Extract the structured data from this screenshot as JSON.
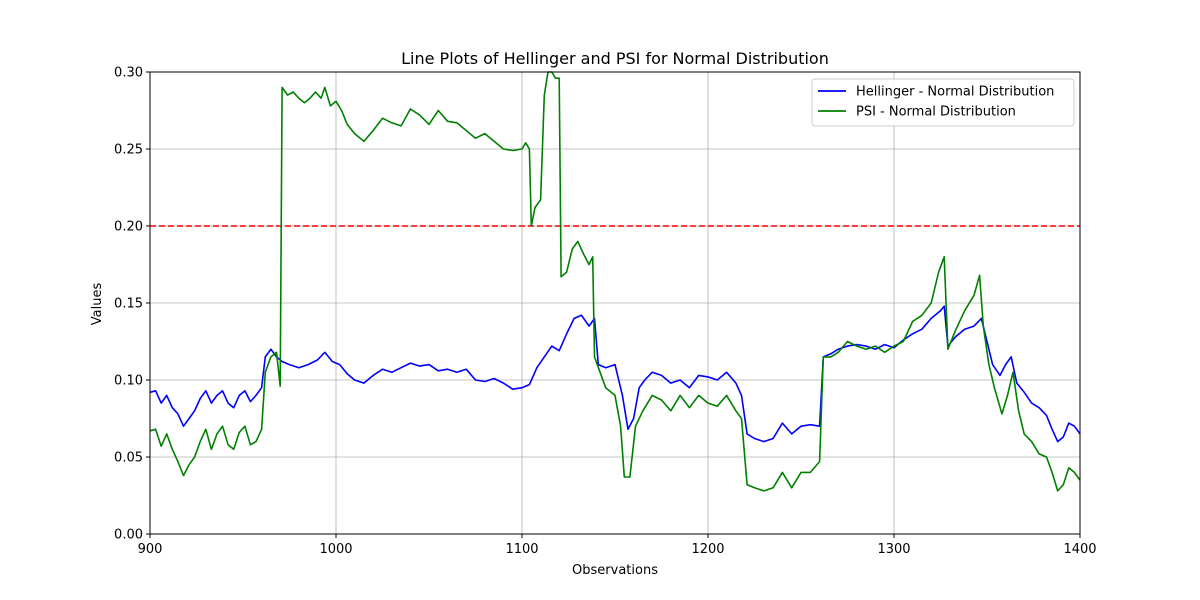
{
  "chart_data": {
    "type": "line",
    "title": "Line Plots of Hellinger and PSI for Normal Distribution",
    "xlabel": "Observations",
    "ylabel": "Values",
    "xlim": [
      900,
      1400
    ],
    "ylim": [
      0.0,
      0.3
    ],
    "x_ticks": [
      900,
      1000,
      1100,
      1200,
      1300,
      1400
    ],
    "x_tick_labels": [
      "900",
      "1000",
      "1100",
      "1200",
      "1300",
      "1400"
    ],
    "y_ticks": [
      0.0,
      0.05,
      0.1,
      0.15,
      0.2,
      0.25,
      0.3
    ],
    "y_tick_labels": [
      "0.00",
      "0.05",
      "0.10",
      "0.15",
      "0.20",
      "0.25",
      "0.30"
    ],
    "grid": true,
    "legend_position": "top-right",
    "threshold": {
      "value": 0.2,
      "color": "#ff0000",
      "style": "dashed"
    },
    "series": [
      {
        "name": "Hellinger - Normal Distribution",
        "color": "#0000ff",
        "points": [
          [
            900,
            0.092
          ],
          [
            903,
            0.093
          ],
          [
            906,
            0.085
          ],
          [
            909,
            0.09
          ],
          [
            912,
            0.082
          ],
          [
            915,
            0.078
          ],
          [
            918,
            0.07
          ],
          [
            921,
            0.075
          ],
          [
            924,
            0.08
          ],
          [
            927,
            0.088
          ],
          [
            930,
            0.093
          ],
          [
            933,
            0.085
          ],
          [
            936,
            0.09
          ],
          [
            939,
            0.093
          ],
          [
            942,
            0.085
          ],
          [
            945,
            0.082
          ],
          [
            948,
            0.09
          ],
          [
            951,
            0.093
          ],
          [
            954,
            0.086
          ],
          [
            957,
            0.09
          ],
          [
            960,
            0.095
          ],
          [
            962,
            0.115
          ],
          [
            965,
            0.12
          ],
          [
            968,
            0.115
          ],
          [
            971,
            0.112
          ],
          [
            975,
            0.11
          ],
          [
            980,
            0.108
          ],
          [
            985,
            0.11
          ],
          [
            990,
            0.113
          ],
          [
            994,
            0.118
          ],
          [
            998,
            0.112
          ],
          [
            1002,
            0.11
          ],
          [
            1006,
            0.104
          ],
          [
            1010,
            0.1
          ],
          [
            1015,
            0.098
          ],
          [
            1020,
            0.103
          ],
          [
            1025,
            0.107
          ],
          [
            1030,
            0.105
          ],
          [
            1035,
            0.108
          ],
          [
            1040,
            0.111
          ],
          [
            1045,
            0.109
          ],
          [
            1050,
            0.11
          ],
          [
            1055,
            0.106
          ],
          [
            1060,
            0.107
          ],
          [
            1065,
            0.105
          ],
          [
            1070,
            0.107
          ],
          [
            1075,
            0.1
          ],
          [
            1080,
            0.099
          ],
          [
            1085,
            0.101
          ],
          [
            1090,
            0.098
          ],
          [
            1095,
            0.094
          ],
          [
            1100,
            0.095
          ],
          [
            1104,
            0.097
          ],
          [
            1108,
            0.108
          ],
          [
            1112,
            0.115
          ],
          [
            1116,
            0.122
          ],
          [
            1120,
            0.119
          ],
          [
            1124,
            0.13
          ],
          [
            1128,
            0.14
          ],
          [
            1132,
            0.142
          ],
          [
            1136,
            0.135
          ],
          [
            1139,
            0.14
          ],
          [
            1141,
            0.11
          ],
          [
            1145,
            0.108
          ],
          [
            1150,
            0.11
          ],
          [
            1154,
            0.09
          ],
          [
            1157,
            0.068
          ],
          [
            1160,
            0.075
          ],
          [
            1163,
            0.095
          ],
          [
            1166,
            0.1
          ],
          [
            1170,
            0.105
          ],
          [
            1175,
            0.103
          ],
          [
            1180,
            0.098
          ],
          [
            1185,
            0.1
          ],
          [
            1190,
            0.095
          ],
          [
            1195,
            0.103
          ],
          [
            1200,
            0.102
          ],
          [
            1205,
            0.1
          ],
          [
            1210,
            0.105
          ],
          [
            1215,
            0.098
          ],
          [
            1218,
            0.09
          ],
          [
            1221,
            0.065
          ],
          [
            1225,
            0.062
          ],
          [
            1230,
            0.06
          ],
          [
            1235,
            0.062
          ],
          [
            1240,
            0.072
          ],
          [
            1245,
            0.065
          ],
          [
            1250,
            0.07
          ],
          [
            1255,
            0.071
          ],
          [
            1260,
            0.07
          ],
          [
            1262,
            0.115
          ],
          [
            1266,
            0.117
          ],
          [
            1270,
            0.12
          ],
          [
            1275,
            0.122
          ],
          [
            1280,
            0.123
          ],
          [
            1285,
            0.122
          ],
          [
            1290,
            0.12
          ],
          [
            1295,
            0.123
          ],
          [
            1300,
            0.121
          ],
          [
            1305,
            0.126
          ],
          [
            1310,
            0.13
          ],
          [
            1315,
            0.133
          ],
          [
            1320,
            0.14
          ],
          [
            1325,
            0.145
          ],
          [
            1327,
            0.148
          ],
          [
            1329,
            0.122
          ],
          [
            1333,
            0.128
          ],
          [
            1338,
            0.133
          ],
          [
            1343,
            0.135
          ],
          [
            1347,
            0.14
          ],
          [
            1350,
            0.125
          ],
          [
            1353,
            0.11
          ],
          [
            1357,
            0.103
          ],
          [
            1360,
            0.11
          ],
          [
            1363,
            0.115
          ],
          [
            1366,
            0.098
          ],
          [
            1370,
            0.092
          ],
          [
            1374,
            0.085
          ],
          [
            1378,
            0.082
          ],
          [
            1382,
            0.077
          ],
          [
            1385,
            0.068
          ],
          [
            1388,
            0.06
          ],
          [
            1391,
            0.063
          ],
          [
            1394,
            0.072
          ],
          [
            1397,
            0.07
          ],
          [
            1400,
            0.065
          ]
        ]
      },
      {
        "name": "PSI - Normal Distribution",
        "color": "#008000",
        "points": [
          [
            900,
            0.067
          ],
          [
            903,
            0.068
          ],
          [
            906,
            0.057
          ],
          [
            909,
            0.065
          ],
          [
            912,
            0.055
          ],
          [
            915,
            0.047
          ],
          [
            918,
            0.038
          ],
          [
            921,
            0.045
          ],
          [
            924,
            0.05
          ],
          [
            927,
            0.06
          ],
          [
            930,
            0.068
          ],
          [
            933,
            0.055
          ],
          [
            936,
            0.065
          ],
          [
            939,
            0.07
          ],
          [
            942,
            0.058
          ],
          [
            945,
            0.055
          ],
          [
            948,
            0.066
          ],
          [
            951,
            0.07
          ],
          [
            954,
            0.058
          ],
          [
            957,
            0.06
          ],
          [
            960,
            0.068
          ],
          [
            962,
            0.105
          ],
          [
            965,
            0.115
          ],
          [
            968,
            0.118
          ],
          [
            970,
            0.096
          ],
          [
            971,
            0.29
          ],
          [
            974,
            0.285
          ],
          [
            977,
            0.287
          ],
          [
            980,
            0.283
          ],
          [
            983,
            0.28
          ],
          [
            986,
            0.283
          ],
          [
            989,
            0.287
          ],
          [
            992,
            0.283
          ],
          [
            994,
            0.29
          ],
          [
            997,
            0.278
          ],
          [
            1000,
            0.281
          ],
          [
            1003,
            0.275
          ],
          [
            1006,
            0.266
          ],
          [
            1010,
            0.26
          ],
          [
            1015,
            0.255
          ],
          [
            1020,
            0.262
          ],
          [
            1025,
            0.27
          ],
          [
            1030,
            0.267
          ],
          [
            1035,
            0.265
          ],
          [
            1040,
            0.276
          ],
          [
            1045,
            0.272
          ],
          [
            1050,
            0.266
          ],
          [
            1055,
            0.275
          ],
          [
            1060,
            0.268
          ],
          [
            1065,
            0.267
          ],
          [
            1070,
            0.262
          ],
          [
            1075,
            0.257
          ],
          [
            1080,
            0.26
          ],
          [
            1085,
            0.255
          ],
          [
            1090,
            0.25
          ],
          [
            1095,
            0.249
          ],
          [
            1100,
            0.25
          ],
          [
            1102,
            0.254
          ],
          [
            1104,
            0.25
          ],
          [
            1105,
            0.2
          ],
          [
            1107,
            0.212
          ],
          [
            1110,
            0.217
          ],
          [
            1112,
            0.285
          ],
          [
            1114,
            0.3
          ],
          [
            1116,
            0.3
          ],
          [
            1118,
            0.296
          ],
          [
            1120,
            0.296
          ],
          [
            1121,
            0.167
          ],
          [
            1124,
            0.17
          ],
          [
            1127,
            0.185
          ],
          [
            1130,
            0.19
          ],
          [
            1133,
            0.182
          ],
          [
            1136,
            0.175
          ],
          [
            1138,
            0.18
          ],
          [
            1139,
            0.115
          ],
          [
            1142,
            0.105
          ],
          [
            1145,
            0.095
          ],
          [
            1150,
            0.09
          ],
          [
            1153,
            0.07
          ],
          [
            1155,
            0.037
          ],
          [
            1158,
            0.037
          ],
          [
            1161,
            0.07
          ],
          [
            1165,
            0.08
          ],
          [
            1170,
            0.09
          ],
          [
            1175,
            0.087
          ],
          [
            1180,
            0.08
          ],
          [
            1185,
            0.09
          ],
          [
            1190,
            0.082
          ],
          [
            1195,
            0.09
          ],
          [
            1200,
            0.085
          ],
          [
            1205,
            0.083
          ],
          [
            1210,
            0.09
          ],
          [
            1215,
            0.08
          ],
          [
            1218,
            0.075
          ],
          [
            1221,
            0.032
          ],
          [
            1225,
            0.03
          ],
          [
            1230,
            0.028
          ],
          [
            1235,
            0.03
          ],
          [
            1240,
            0.04
          ],
          [
            1245,
            0.03
          ],
          [
            1250,
            0.04
          ],
          [
            1255,
            0.04
          ],
          [
            1260,
            0.047
          ],
          [
            1262,
            0.115
          ],
          [
            1266,
            0.115
          ],
          [
            1270,
            0.118
          ],
          [
            1275,
            0.125
          ],
          [
            1280,
            0.122
          ],
          [
            1285,
            0.12
          ],
          [
            1290,
            0.122
          ],
          [
            1295,
            0.118
          ],
          [
            1300,
            0.122
          ],
          [
            1305,
            0.125
          ],
          [
            1310,
            0.138
          ],
          [
            1315,
            0.142
          ],
          [
            1320,
            0.15
          ],
          [
            1324,
            0.17
          ],
          [
            1327,
            0.18
          ],
          [
            1329,
            0.12
          ],
          [
            1333,
            0.132
          ],
          [
            1338,
            0.145
          ],
          [
            1343,
            0.155
          ],
          [
            1346,
            0.168
          ],
          [
            1348,
            0.135
          ],
          [
            1351,
            0.11
          ],
          [
            1354,
            0.095
          ],
          [
            1358,
            0.078
          ],
          [
            1361,
            0.09
          ],
          [
            1364,
            0.105
          ],
          [
            1367,
            0.08
          ],
          [
            1370,
            0.065
          ],
          [
            1374,
            0.06
          ],
          [
            1378,
            0.052
          ],
          [
            1382,
            0.05
          ],
          [
            1385,
            0.04
          ],
          [
            1388,
            0.028
          ],
          [
            1391,
            0.032
          ],
          [
            1394,
            0.043
          ],
          [
            1397,
            0.04
          ],
          [
            1400,
            0.035
          ]
        ]
      }
    ]
  }
}
